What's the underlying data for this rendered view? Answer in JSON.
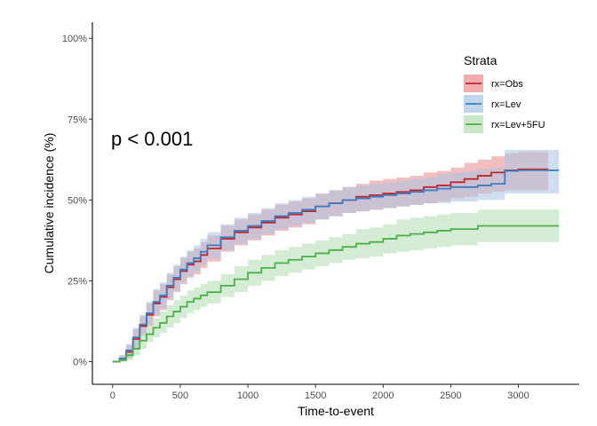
{
  "chart_data": {
    "type": "line",
    "title": "",
    "xlabel": "Time-to-event",
    "ylabel": "Cumulative incidence (%)",
    "xlim": [
      -150,
      3450
    ],
    "ylim": [
      -0.07,
      1.05
    ],
    "x_ticks": [
      0,
      500,
      1000,
      1500,
      2000,
      2500,
      3000
    ],
    "x_tick_labels": [
      "0",
      "500",
      "1000",
      "1500",
      "2000",
      "2500",
      "3000"
    ],
    "y_ticks": [
      0,
      0.25,
      0.5,
      0.75,
      1.0
    ],
    "y_tick_labels": [
      "0%",
      "25%",
      "50%",
      "75%",
      "100%"
    ],
    "grid": false,
    "annotation": "p < 0.001",
    "legend": {
      "title": "Strata",
      "position": "top-right",
      "entries": [
        "rx=Obs",
        "rx=Lev",
        "rx=Lev+5FU"
      ]
    },
    "series": [
      {
        "name": "rx=Obs",
        "color": "#C0282E",
        "band_color": "#E9898D",
        "x": [
          0,
          50,
          100,
          150,
          200,
          250,
          300,
          350,
          400,
          450,
          500,
          550,
          600,
          650,
          700,
          800,
          900,
          1000,
          1100,
          1200,
          1300,
          1400,
          1500,
          1600,
          1700,
          1800,
          1900,
          2000,
          2100,
          2200,
          2300,
          2400,
          2500,
          2600,
          2700,
          2800,
          2900,
          3000,
          3100,
          3220
        ],
        "values": [
          0,
          0.01,
          0.03,
          0.07,
          0.11,
          0.145,
          0.18,
          0.2,
          0.23,
          0.255,
          0.28,
          0.3,
          0.31,
          0.33,
          0.35,
          0.38,
          0.4,
          0.415,
          0.43,
          0.445,
          0.455,
          0.465,
          0.48,
          0.49,
          0.5,
          0.51,
          0.515,
          0.52,
          0.525,
          0.53,
          0.54,
          0.545,
          0.555,
          0.565,
          0.575,
          0.585,
          0.592,
          0.595,
          0.595,
          0.595
        ],
        "lower": [
          0,
          0.0,
          0.01,
          0.04,
          0.08,
          0.11,
          0.14,
          0.16,
          0.19,
          0.215,
          0.24,
          0.26,
          0.27,
          0.29,
          0.31,
          0.34,
          0.36,
          0.375,
          0.39,
          0.405,
          0.415,
          0.425,
          0.44,
          0.45,
          0.46,
          0.465,
          0.47,
          0.475,
          0.48,
          0.485,
          0.49,
          0.495,
          0.505,
          0.51,
          0.52,
          0.525,
          0.53,
          0.53,
          0.53,
          0.53
        ],
        "upper": [
          0,
          0.02,
          0.05,
          0.1,
          0.14,
          0.18,
          0.22,
          0.24,
          0.27,
          0.295,
          0.32,
          0.34,
          0.35,
          0.37,
          0.39,
          0.42,
          0.44,
          0.455,
          0.47,
          0.485,
          0.495,
          0.505,
          0.52,
          0.53,
          0.54,
          0.55,
          0.56,
          0.565,
          0.57,
          0.575,
          0.585,
          0.59,
          0.6,
          0.615,
          0.625,
          0.635,
          0.645,
          0.65,
          0.65,
          0.65
        ]
      },
      {
        "name": "rx=Lev",
        "color": "#3F7CBF",
        "band_color": "#A7C4E2",
        "x": [
          0,
          50,
          100,
          150,
          200,
          250,
          300,
          350,
          400,
          450,
          500,
          550,
          600,
          650,
          700,
          800,
          900,
          1000,
          1100,
          1200,
          1300,
          1400,
          1500,
          1600,
          1700,
          1800,
          1900,
          2000,
          2100,
          2200,
          2300,
          2400,
          2500,
          2600,
          2700,
          2800,
          2900,
          3000,
          3100,
          3200,
          3300
        ],
        "values": [
          0,
          0.01,
          0.035,
          0.075,
          0.115,
          0.15,
          0.185,
          0.205,
          0.235,
          0.26,
          0.285,
          0.305,
          0.32,
          0.34,
          0.36,
          0.385,
          0.405,
          0.42,
          0.435,
          0.45,
          0.46,
          0.47,
          0.48,
          0.49,
          0.5,
          0.505,
          0.51,
          0.515,
          0.52,
          0.525,
          0.53,
          0.535,
          0.54,
          0.54,
          0.545,
          0.55,
          0.59,
          0.592,
          0.592,
          0.592,
          0.592
        ],
        "lower": [
          0,
          0.0,
          0.015,
          0.045,
          0.085,
          0.115,
          0.145,
          0.165,
          0.195,
          0.22,
          0.245,
          0.265,
          0.28,
          0.3,
          0.32,
          0.345,
          0.365,
          0.38,
          0.395,
          0.41,
          0.42,
          0.43,
          0.44,
          0.45,
          0.46,
          0.465,
          0.47,
          0.475,
          0.48,
          0.485,
          0.49,
          0.49,
          0.495,
          0.495,
          0.5,
          0.5,
          0.52,
          0.52,
          0.52,
          0.52,
          0.52
        ],
        "upper": [
          0,
          0.02,
          0.055,
          0.105,
          0.145,
          0.185,
          0.225,
          0.245,
          0.275,
          0.3,
          0.325,
          0.345,
          0.36,
          0.38,
          0.4,
          0.425,
          0.445,
          0.46,
          0.475,
          0.49,
          0.5,
          0.51,
          0.52,
          0.53,
          0.54,
          0.545,
          0.55,
          0.555,
          0.56,
          0.565,
          0.57,
          0.58,
          0.585,
          0.59,
          0.595,
          0.6,
          0.655,
          0.655,
          0.655,
          0.655,
          0.655
        ]
      },
      {
        "name": "rx=Lev+5FU",
        "color": "#4DAF4A",
        "band_color": "#B3DDB1",
        "x": [
          0,
          50,
          100,
          150,
          200,
          250,
          300,
          350,
          400,
          450,
          500,
          550,
          600,
          650,
          700,
          800,
          900,
          1000,
          1100,
          1200,
          1300,
          1400,
          1500,
          1600,
          1700,
          1800,
          1900,
          2000,
          2100,
          2200,
          2300,
          2400,
          2500,
          2600,
          2700,
          2800,
          2900,
          3000,
          3100,
          3200,
          3300
        ],
        "values": [
          0,
          0.005,
          0.02,
          0.04,
          0.065,
          0.085,
          0.105,
          0.12,
          0.14,
          0.155,
          0.17,
          0.185,
          0.195,
          0.205,
          0.215,
          0.235,
          0.255,
          0.275,
          0.29,
          0.305,
          0.315,
          0.325,
          0.335,
          0.345,
          0.355,
          0.365,
          0.37,
          0.38,
          0.39,
          0.395,
          0.4,
          0.405,
          0.41,
          0.41,
          0.42,
          0.42,
          0.42,
          0.42,
          0.42,
          0.42,
          0.42
        ],
        "lower": [
          0,
          0.0,
          0.005,
          0.02,
          0.04,
          0.06,
          0.075,
          0.09,
          0.105,
          0.12,
          0.135,
          0.15,
          0.16,
          0.17,
          0.18,
          0.2,
          0.215,
          0.235,
          0.25,
          0.265,
          0.275,
          0.285,
          0.295,
          0.305,
          0.315,
          0.32,
          0.325,
          0.335,
          0.34,
          0.345,
          0.35,
          0.355,
          0.36,
          0.36,
          0.37,
          0.37,
          0.37,
          0.37,
          0.37,
          0.37,
          0.37
        ],
        "upper": [
          0,
          0.012,
          0.035,
          0.06,
          0.09,
          0.115,
          0.135,
          0.155,
          0.175,
          0.19,
          0.205,
          0.22,
          0.23,
          0.24,
          0.25,
          0.27,
          0.295,
          0.315,
          0.33,
          0.345,
          0.355,
          0.365,
          0.375,
          0.385,
          0.395,
          0.41,
          0.415,
          0.425,
          0.44,
          0.445,
          0.45,
          0.455,
          0.46,
          0.46,
          0.47,
          0.47,
          0.47,
          0.47,
          0.47,
          0.47,
          0.47
        ]
      }
    ]
  }
}
